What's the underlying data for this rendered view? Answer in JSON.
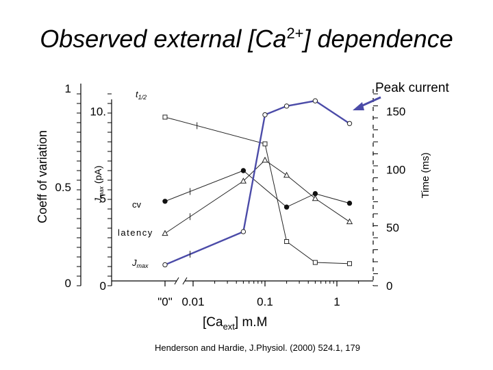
{
  "slide": {
    "title_prefix": "Observed external [Ca",
    "title_sup": "2+",
    "title_suffix": "] dependence",
    "citation": "Henderson and Hardie, J.Physiol. (2000) 524.1, 179"
  },
  "chart_data": {
    "type": "line",
    "xlabel": "[Ca",
    "xlabel_sub": "ext",
    "xlabel_unit": "] m.M",
    "x_scale": "log",
    "x_ticks": [
      {
        "label": "\"0\"",
        "value": 0
      },
      {
        "label": "0.01",
        "value": 0.01
      },
      {
        "label": "0.1",
        "value": 0.1
      },
      {
        "label": "1",
        "value": 1
      }
    ],
    "left_axis_outer": {
      "label": "Coeff of variation",
      "range": [
        0,
        1
      ],
      "ticks": [
        "1",
        "0.5",
        "0"
      ]
    },
    "left_axis_inner": {
      "label": "J",
      "label_sub": "max",
      "label_unit": "(pA)",
      "range": [
        0,
        11
      ],
      "ticks": [
        "10.",
        "5",
        "0"
      ]
    },
    "right_axis": {
      "label": "Time (ms)",
      "range": [
        0,
        165
      ],
      "ticks": [
        "150",
        "100",
        "50",
        "0"
      ]
    },
    "x_points": [
      0,
      0.05,
      0.1,
      0.2,
      0.5,
      1.5
    ],
    "series": [
      {
        "name": "t",
        "name_sub": "1/2",
        "marker": "square",
        "axis": "right",
        "values": [
          145,
          null,
          122,
          38,
          20,
          19
        ]
      },
      {
        "name": "cv",
        "marker": "filled-circle",
        "axis": "outer",
        "values": [
          0.44,
          0.6,
          null,
          0.41,
          0.48,
          0.43
        ]
      },
      {
        "name": "latency",
        "marker": "triangle",
        "axis": "right",
        "values": [
          45,
          90,
          108,
          95,
          75,
          55
        ]
      },
      {
        "name": "J",
        "name_sub": "max",
        "marker": "circle",
        "axis": "inner",
        "values": [
          1.2,
          3.1,
          9.8,
          10.3,
          10.6,
          9.3
        ]
      }
    ],
    "annotation": {
      "text": "Peak current",
      "target_series": "J",
      "color": "#4b4ba8"
    },
    "grid": false
  }
}
